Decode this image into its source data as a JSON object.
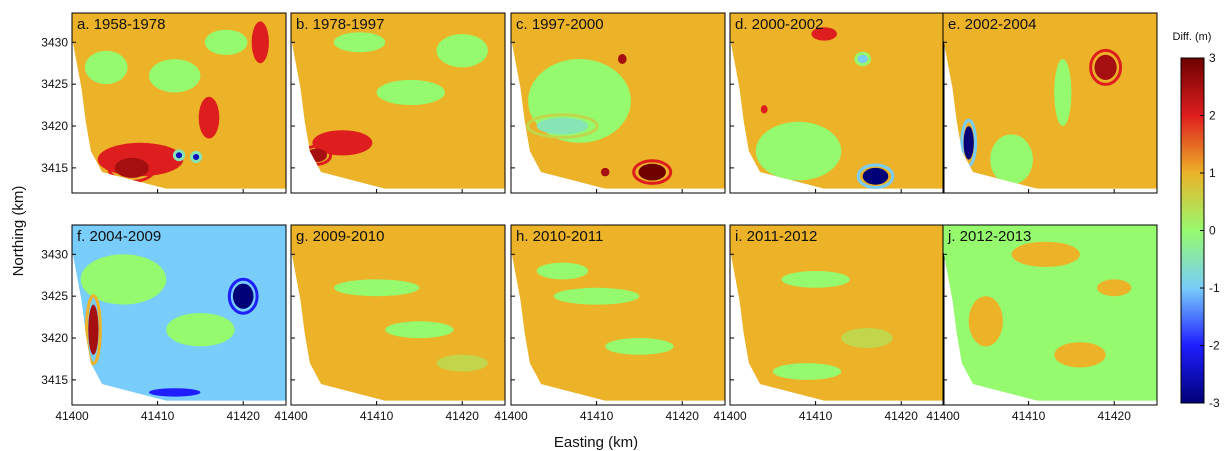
{
  "chart_data": {
    "type": "heatmap",
    "xlabel": "Easting (km)",
    "ylabel": "Northing (km)",
    "x_ticks": [
      "41400",
      "41410",
      "41420"
    ],
    "y_ticks": [
      "3430",
      "3425",
      "3420",
      "3415"
    ],
    "xlim": [
      41400,
      41425
    ],
    "ylim": [
      3412,
      3433.5
    ],
    "colorbar": {
      "label": "Diff. (m)",
      "range": [
        -3,
        3
      ],
      "ticks": [
        "3",
        "2",
        "1",
        "0",
        "-1",
        "-2",
        "-3"
      ]
    },
    "panels": [
      {
        "title": "a. 1958-1978",
        "base_value": 1.0,
        "features": [
          {
            "x": 41404,
            "y": 3427,
            "value": 0.0,
            "rx": 2.5,
            "ry": 2.0
          },
          {
            "x": 41412,
            "y": 3426,
            "value": 0.1,
            "rx": 3.0,
            "ry": 2.0
          },
          {
            "x": 41418,
            "y": 3430,
            "value": 0.2,
            "rx": 2.5,
            "ry": 1.5
          },
          {
            "x": 41408,
            "y": 3416,
            "value": 2.0,
            "rx": 5.0,
            "ry": 2.0
          },
          {
            "x": 41407,
            "y": 3415,
            "value": 2.7,
            "rx": 2.0,
            "ry": 1.2
          },
          {
            "x": 41416,
            "y": 3421,
            "value": 2.0,
            "rx": 1.2,
            "ry": 2.5
          },
          {
            "x": 41422,
            "y": 3430,
            "value": 2.0,
            "rx": 1.0,
            "ry": 2.5
          },
          {
            "x": 41412.5,
            "y": 3416.5,
            "value": -2.5,
            "rx": 0.4,
            "ry": 0.4
          },
          {
            "x": 41414.5,
            "y": 3416.3,
            "value": -2.5,
            "rx": 0.4,
            "ry": 0.4
          }
        ]
      },
      {
        "title": "b. 1978-1997",
        "base_value": 1.0,
        "features": [
          {
            "x": 41406,
            "y": 3418,
            "value": 2.0,
            "rx": 3.5,
            "ry": 1.5
          },
          {
            "x": 41403,
            "y": 3416.5,
            "value": 2.7,
            "rx": 1.2,
            "ry": 0.8
          },
          {
            "x": 41414,
            "y": 3424,
            "value": 0.1,
            "rx": 4.0,
            "ry": 1.5
          },
          {
            "x": 41420,
            "y": 3429,
            "value": 0.2,
            "rx": 3.0,
            "ry": 2.0
          },
          {
            "x": 41408,
            "y": 3430,
            "value": 0.1,
            "rx": 3.0,
            "ry": 1.2
          }
        ]
      },
      {
        "title": "c. 1997-2000",
        "base_value": 1.0,
        "features": [
          {
            "x": 41408,
            "y": 3423,
            "value": 0.0,
            "rx": 6.0,
            "ry": 5.0
          },
          {
            "x": 41406,
            "y": 3420,
            "value": -0.5,
            "rx": 3.0,
            "ry": 1.0
          },
          {
            "x": 41416.5,
            "y": 3414.5,
            "value": 2.8,
            "rx": 1.6,
            "ry": 1.0
          },
          {
            "x": 41413,
            "y": 3428,
            "value": 2.3,
            "rx": 0.5,
            "ry": 0.6
          },
          {
            "x": 41411,
            "y": 3414.5,
            "value": 2.3,
            "rx": 0.5,
            "ry": 0.5
          }
        ]
      },
      {
        "title": "d. 2000-2002",
        "base_value": 1.0,
        "features": [
          {
            "x": 41408,
            "y": 3417,
            "value": 0.0,
            "rx": 5.0,
            "ry": 3.5
          },
          {
            "x": 41417,
            "y": 3414,
            "value": -2.8,
            "rx": 1.5,
            "ry": 1.0
          },
          {
            "x": 41415.5,
            "y": 3428,
            "value": -1.0,
            "rx": 0.6,
            "ry": 0.5
          },
          {
            "x": 41411,
            "y": 3431,
            "value": 2.2,
            "rx": 1.5,
            "ry": 0.8
          },
          {
            "x": 41404,
            "y": 3422,
            "value": 2.2,
            "rx": 0.4,
            "ry": 0.5
          }
        ]
      },
      {
        "title": "e. 2002-2004",
        "base_value": 1.0,
        "features": [
          {
            "x": 41419,
            "y": 3427,
            "value": 2.7,
            "rx": 1.3,
            "ry": 1.5
          },
          {
            "x": 41403,
            "y": 3418,
            "value": -2.8,
            "rx": 0.6,
            "ry": 2.0
          },
          {
            "x": 41408,
            "y": 3416,
            "value": 0.0,
            "rx": 2.5,
            "ry": 3.0
          },
          {
            "x": 41414,
            "y": 3424,
            "value": 0.0,
            "rx": 1.0,
            "ry": 4.0
          }
        ]
      },
      {
        "title": "f. 2004-2009",
        "base_value": -1.0,
        "features": [
          {
            "x": 41406,
            "y": 3427,
            "value": 0.0,
            "rx": 5.0,
            "ry": 3.0
          },
          {
            "x": 41415,
            "y": 3421,
            "value": 0.0,
            "rx": 4.0,
            "ry": 2.0
          },
          {
            "x": 41420,
            "y": 3425,
            "value": -2.8,
            "rx": 1.2,
            "ry": 1.5
          },
          {
            "x": 41402.5,
            "y": 3421,
            "value": 2.6,
            "rx": 0.6,
            "ry": 3.0
          },
          {
            "x": 41412,
            "y": 3413.5,
            "value": -2.2,
            "rx": 3.0,
            "ry": 0.5
          }
        ]
      },
      {
        "title": "g. 2009-2010",
        "base_value": 1.0,
        "features": [
          {
            "x": 41410,
            "y": 3426,
            "value": 0.2,
            "rx": 5.0,
            "ry": 1.0
          },
          {
            "x": 41415,
            "y": 3421,
            "value": 0.2,
            "rx": 4.0,
            "ry": 1.0
          },
          {
            "x": 41420,
            "y": 3417,
            "value": 0.3,
            "rx": 3.0,
            "ry": 1.0
          }
        ]
      },
      {
        "title": "h. 2010-2011",
        "base_value": 1.0,
        "features": [
          {
            "x": 41410,
            "y": 3425,
            "value": 0.2,
            "rx": 5.0,
            "ry": 1.0
          },
          {
            "x": 41415,
            "y": 3419,
            "value": 0.2,
            "rx": 4.0,
            "ry": 1.0
          },
          {
            "x": 41406,
            "y": 3428,
            "value": 0.2,
            "rx": 3.0,
            "ry": 1.0
          }
        ]
      },
      {
        "title": "i. 2011-2012",
        "base_value": 1.0,
        "features": [
          {
            "x": 41410,
            "y": 3427,
            "value": 0.2,
            "rx": 4.0,
            "ry": 1.0
          },
          {
            "x": 41416,
            "y": 3420,
            "value": 0.3,
            "rx": 3.0,
            "ry": 1.2
          },
          {
            "x": 41409,
            "y": 3416,
            "value": 0.2,
            "rx": 4.0,
            "ry": 1.0
          }
        ]
      },
      {
        "title": "j. 2012-2013",
        "base_value": 0.0,
        "features": [
          {
            "x": 41412,
            "y": 3430,
            "value": 1.0,
            "rx": 4.0,
            "ry": 1.5
          },
          {
            "x": 41405,
            "y": 3422,
            "value": 1.0,
            "rx": 2.0,
            "ry": 3.0
          },
          {
            "x": 41416,
            "y": 3418,
            "value": 1.0,
            "rx": 3.0,
            "ry": 1.5
          },
          {
            "x": 41420,
            "y": 3426,
            "value": 1.0,
            "rx": 2.0,
            "ry": 1.0
          }
        ]
      }
    ]
  }
}
